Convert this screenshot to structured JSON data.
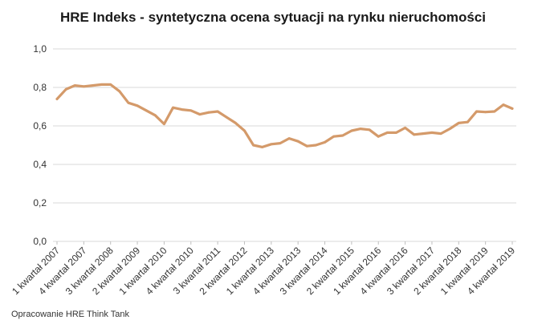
{
  "chart_data": {
    "type": "line",
    "title": "HRE Indeks - syntetyczna ocena sytuacji na rynku nieruchomości",
    "source": "Opracowanie HRE Think Tank",
    "line_color": "#d49a6a",
    "ylim": [
      0,
      1.0
    ],
    "y_ticks": [
      "0,0",
      "0,2",
      "0,4",
      "0,6",
      "0,8",
      "1,0"
    ],
    "x_tick_labels": [
      {
        "label": "1 kwartał 2007",
        "index": 0
      },
      {
        "label": "4 kwartał 2007",
        "index": 3
      },
      {
        "label": "3 kwartał 2008",
        "index": 6
      },
      {
        "label": "2 kwartał 2009",
        "index": 9
      },
      {
        "label": "1 kwartał 2010",
        "index": 12
      },
      {
        "label": "4 kwartał 2010",
        "index": 15
      },
      {
        "label": "3 kwartał 2011",
        "index": 18
      },
      {
        "label": "2 kwartał 2012",
        "index": 21
      },
      {
        "label": "1 kwartał 2013",
        "index": 24
      },
      {
        "label": "4 kwartał 2013",
        "index": 27
      },
      {
        "label": "3 kwartał 2014",
        "index": 30
      },
      {
        "label": "2 kwartał 2015",
        "index": 33
      },
      {
        "label": "1 kwartał 2016",
        "index": 36
      },
      {
        "label": "4 kwartał 2016",
        "index": 39
      },
      {
        "label": "3 kwartał 2017",
        "index": 42
      },
      {
        "label": "2 kwartał 2018",
        "index": 45
      },
      {
        "label": "1 kwartał 2019",
        "index": 48
      },
      {
        "label": "4 kwartał 2019",
        "index": 51
      }
    ],
    "values": [
      0.74,
      0.79,
      0.81,
      0.805,
      0.81,
      0.815,
      0.815,
      0.78,
      0.72,
      0.705,
      0.68,
      0.655,
      0.61,
      0.695,
      0.685,
      0.68,
      0.66,
      0.67,
      0.675,
      0.645,
      0.615,
      0.575,
      0.5,
      0.49,
      0.505,
      0.51,
      0.535,
      0.52,
      0.495,
      0.5,
      0.515,
      0.545,
      0.55,
      0.575,
      0.585,
      0.58,
      0.545,
      0.565,
      0.565,
      0.59,
      0.555,
      0.56,
      0.565,
      0.56,
      0.585,
      0.615,
      0.62,
      0.675,
      0.672,
      0.675,
      0.71,
      0.69
    ]
  }
}
